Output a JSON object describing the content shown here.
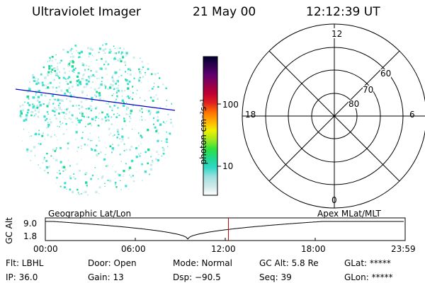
{
  "header": {
    "title": "Ultraviolet Imager",
    "date": "21 May 00",
    "time": "12:12:39 UT"
  },
  "colorbar": {
    "label": "photon cm⁻²s⁻¹",
    "ticks": [
      "100",
      "10"
    ],
    "colors": [
      "#ffffff",
      "#cfe8e8",
      "#9fe0e0",
      "#30d8c8",
      "#20d890",
      "#30e040",
      "#a0e820",
      "#f0f000",
      "#ffb000",
      "#ff7000",
      "#e02020",
      "#c00030",
      "#900050",
      "#600070",
      "#300050",
      "#000030"
    ]
  },
  "polar": {
    "mlt_labels": {
      "top": "12",
      "left": "18",
      "right": "6",
      "bottom": "0"
    },
    "lat_labels": [
      "60",
      "70",
      "80"
    ]
  },
  "timeline": {
    "left_title": "Geographic Lat/Lon",
    "right_title": "Apex MLat/MLT",
    "axis_label": "GC Alt",
    "y_ticks": [
      "9.0",
      "1.8"
    ],
    "x_ticks": [
      "00:00",
      "06:00",
      "12:00",
      "18:00",
      "23:59"
    ],
    "curve_color": "#000000",
    "marker_color": "#c00000",
    "marker_hours": 12.21
  },
  "status": {
    "flt": "Flt: LBHL",
    "ip": "IP: 36.0",
    "door": "Door: Open",
    "gain": "Gain: 13",
    "mode": "Mode: Normal",
    "dsp": "Dsp:  −90.5",
    "gcalt": "GC Alt: 5.8 Re",
    "seq": "Seq: 39",
    "glat": "GLat: *****",
    "glon": "GLon: *****"
  },
  "colors": {
    "terminator": "#0000cc",
    "speckle_cyan": "#40e0d0",
    "speckle_green": "#20d890",
    "speckle_pale": "#c8ecec"
  }
}
